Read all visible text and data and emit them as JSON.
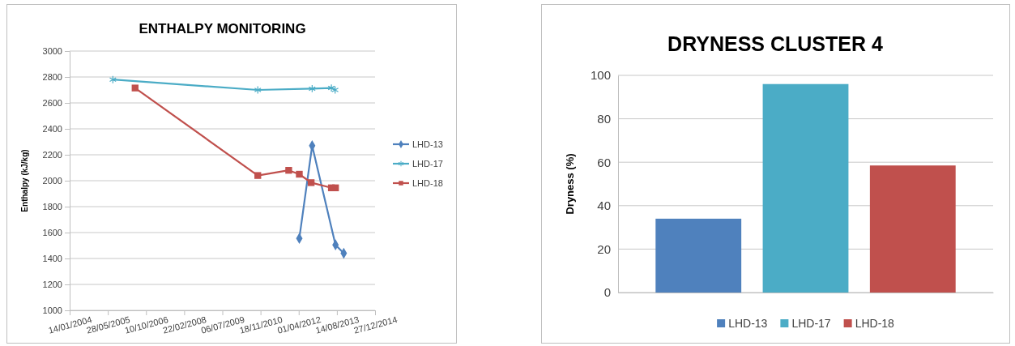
{
  "chart_data": [
    {
      "type": "line",
      "title": "ENTHALPY MONITORING",
      "ylabel": "Enthalpy (kJ/kg)",
      "xlim": [
        "2004-01-14",
        "2014-12-27"
      ],
      "xticks": [
        {
          "value": "2004-01-14",
          "label": "14/01/2004"
        },
        {
          "value": "2005-05-28",
          "label": "28/05/2005"
        },
        {
          "value": "2006-10-10",
          "label": "10/10/2006"
        },
        {
          "value": "2008-02-22",
          "label": "22/02/2008"
        },
        {
          "value": "2009-07-06",
          "label": "06/07/2009"
        },
        {
          "value": "2010-11-18",
          "label": "18/11/2010"
        },
        {
          "value": "2012-04-01",
          "label": "01/04/2012"
        },
        {
          "value": "2013-08-14",
          "label": "14/08/2013"
        },
        {
          "value": "2014-12-27",
          "label": "27/12/2014"
        }
      ],
      "ylim": [
        1000,
        3000
      ],
      "yticks": [
        1000,
        1200,
        1400,
        1600,
        1800,
        2000,
        2200,
        2400,
        2600,
        2800,
        3000
      ],
      "grid": "y",
      "legend": "right",
      "series": [
        {
          "name": "LHD-13",
          "color": "#4f81bd",
          "marker": "diamond",
          "x": [
            "2012-04-09",
            "2012-09-24",
            "2013-07-27",
            "2013-11-12"
          ],
          "values": [
            1555,
            2270,
            1505,
            1440
          ]
        },
        {
          "name": "LHD-17",
          "color": "#4bacc6",
          "marker": "cross",
          "x": [
            "2005-08-02",
            "2010-10-13",
            "2012-09-24",
            "2013-06-03",
            "2013-07-22"
          ],
          "values": [
            2780,
            2700,
            2710,
            2715,
            2700
          ]
        },
        {
          "name": "LHD-18",
          "color": "#c0504d",
          "marker": "square",
          "x": [
            "2006-05-20",
            "2010-10-13",
            "2011-11-22",
            "2012-04-09",
            "2012-09-11",
            "2013-06-03",
            "2013-07-27"
          ],
          "values": [
            2715,
            2040,
            2080,
            2050,
            1985,
            1945,
            1945
          ]
        }
      ]
    },
    {
      "type": "bar",
      "title": "DRYNESS CLUSTER 4",
      "ylabel": "Dryness (%)",
      "categories": [
        null
      ],
      "ylim": [
        0,
        100
      ],
      "yticks": [
        0,
        20,
        40,
        60,
        80,
        100
      ],
      "grid": "y",
      "legend": "bottom",
      "series": [
        {
          "name": "LHD-13",
          "color": "#4f81bd",
          "values": [
            34
          ]
        },
        {
          "name": "LHD-17",
          "color": "#4bacc6",
          "values": [
            96
          ]
        },
        {
          "name": "LHD-18",
          "color": "#c0504d",
          "values": [
            58.5
          ]
        }
      ]
    }
  ]
}
